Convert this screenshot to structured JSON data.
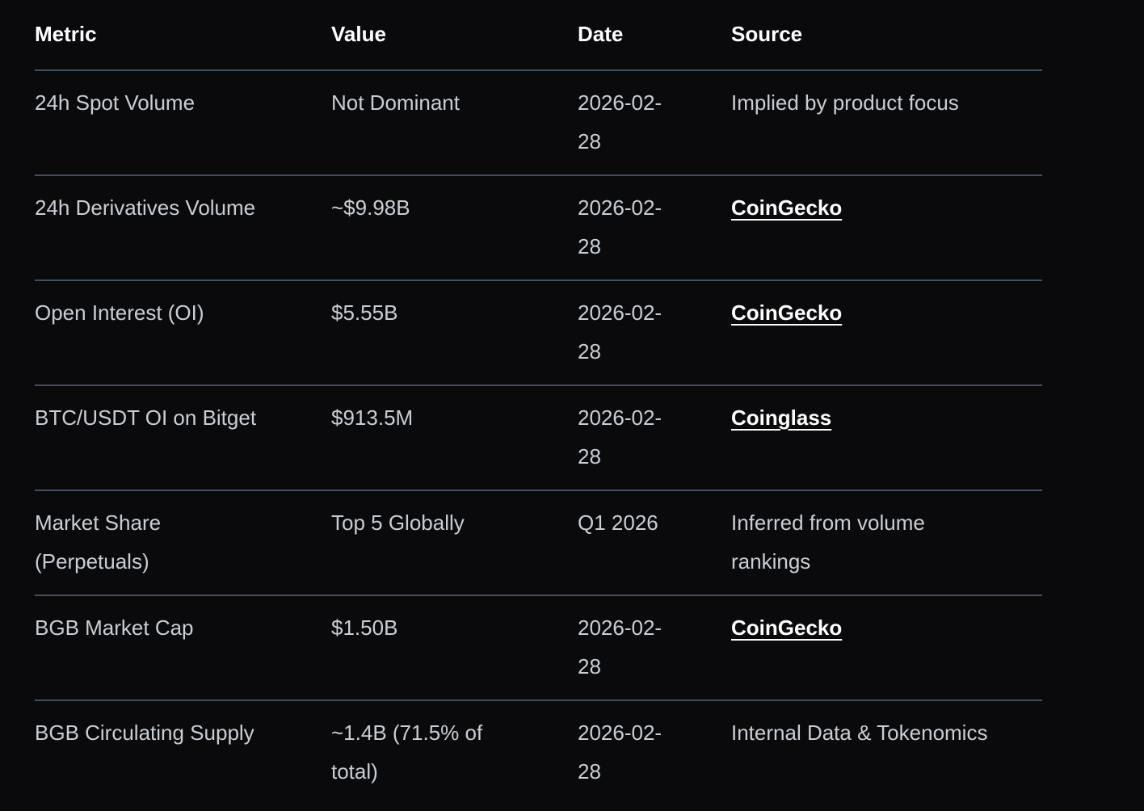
{
  "table": {
    "columns": {
      "metric": "Metric",
      "value": "Value",
      "date": "Date",
      "source": "Source"
    },
    "rows": [
      {
        "metric": "24h Spot Volume",
        "value": "Not Dominant",
        "date": "2026-02-28",
        "source": "Implied by product focus",
        "source_is_link": false
      },
      {
        "metric": "24h Derivatives Volume",
        "value": "~$9.98B",
        "date": "2026-02-28",
        "source": "CoinGecko",
        "source_is_link": true
      },
      {
        "metric": "Open Interest (OI)",
        "value": "$5.55B",
        "date": "2026-02-28",
        "source": "CoinGecko",
        "source_is_link": true
      },
      {
        "metric": "BTC/USDT OI on Bitget",
        "value": "$913.5M",
        "date": "2026-02-28",
        "source": "Coinglass",
        "source_is_link": true
      },
      {
        "metric": "Market Share (Perpetuals)",
        "value": "Top 5 Globally",
        "date": "Q1 2026",
        "source": "Inferred from volume rankings",
        "source_is_link": false
      },
      {
        "metric": "BGB Market Cap",
        "value": "$1.50B",
        "date": "2026-02-28",
        "source": "CoinGecko",
        "source_is_link": true
      },
      {
        "metric": "BGB Circulating Supply",
        "value": "~1.4B (71.5% of total)",
        "date": "2026-02-28",
        "source": "Internal Data & Tokenomics",
        "source_is_link": false
      }
    ],
    "colors": {
      "background": "#0a0a0c",
      "divider": "#434e60",
      "header_text": "#ffffff",
      "body_text": "#c9ced6",
      "link_text": "#ffffff"
    }
  }
}
